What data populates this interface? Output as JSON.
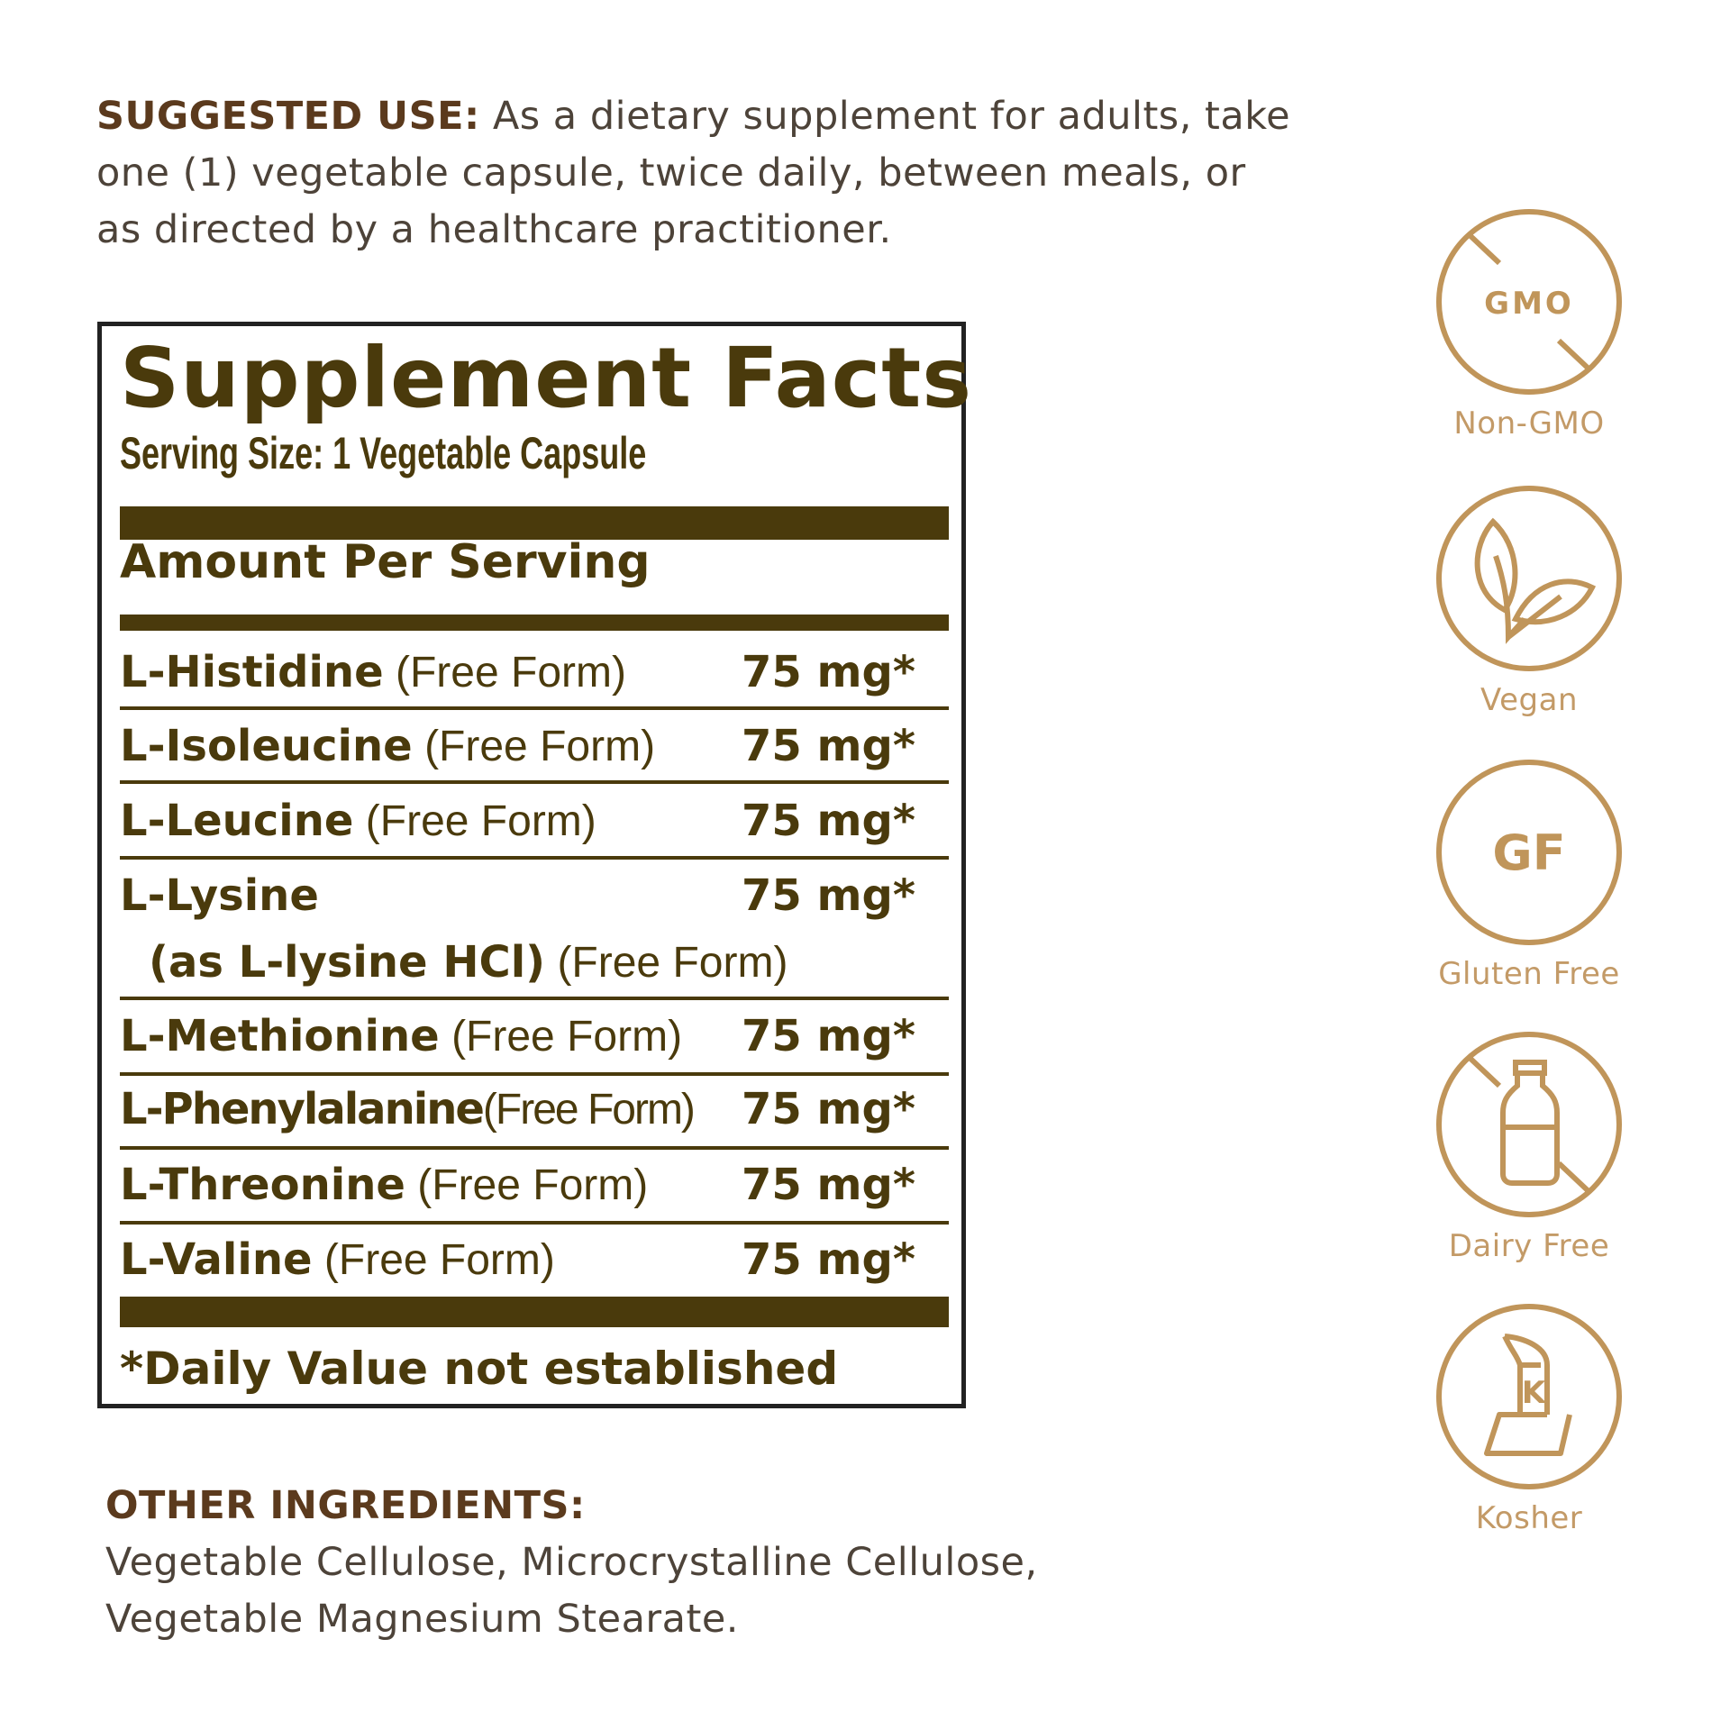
{
  "suggested_use": {
    "label": "SUGGESTED USE:",
    "text": " As a dietary supplement for adults, take one (1) vegetable capsule, twice daily, between meals, or as directed by a healthcare practitioner."
  },
  "facts": {
    "title": "Supplement Facts",
    "serving_size": "Serving Size: 1 Vegetable Capsule",
    "amount_per_serving": "Amount Per Serving",
    "rows": [
      {
        "name": "L-Histidine",
        "form": " (Free Form)",
        "amount": "75 mg*"
      },
      {
        "name": "L-Isoleucine",
        "form": " (Free Form)",
        "amount": "75 mg*"
      },
      {
        "name": "L-Leucine",
        "form": " (Free Form)",
        "amount": "75 mg*"
      },
      {
        "name": "L-Lysine",
        "sub_name": "(as L-lysine HCl)",
        "form": " (Free Form)",
        "amount": "75 mg*"
      },
      {
        "name": "L-Methionine",
        "form": " (Free Form)",
        "amount": "75 mg*"
      },
      {
        "name": "L-Phenylalanine",
        "form": "(Free Form)",
        "amount": "75 mg*"
      },
      {
        "name": "L-Threonine",
        "form": " (Free Form)",
        "amount": "75 mg*"
      },
      {
        "name": "L-Valine",
        "form": " (Free Form)",
        "amount": "75 mg*"
      }
    ],
    "footnote": "*Daily Value not established"
  },
  "other_ingredients": {
    "heading": "OTHER INGREDIENTS:",
    "line1": "Vegetable Cellulose, Microcrystalline Cellulose,",
    "line2": "Vegetable Magnesium Stearate."
  },
  "badges": [
    {
      "icon": "non-gmo-icon",
      "icon_text": "GMO",
      "label": "Non-GMO"
    },
    {
      "icon": "vegan-leaf-icon",
      "label": "Vegan"
    },
    {
      "icon": "gluten-free-icon",
      "icon_text": "GF",
      "label": "Gluten Free"
    },
    {
      "icon": "dairy-free-icon",
      "label": "Dairy Free"
    },
    {
      "icon": "kosher-icon",
      "icon_text": "K",
      "label": "Kosher"
    }
  ],
  "colors": {
    "label_text": "#4a3a0c",
    "badge_gold": "#c0955a",
    "heading_brown": "#5b3a1d"
  }
}
